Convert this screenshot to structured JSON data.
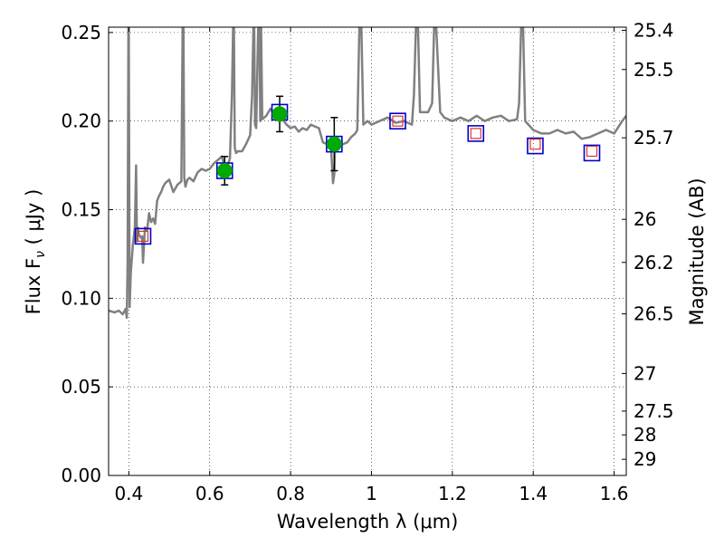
{
  "chart_data": {
    "type": "line",
    "xlabel": "Wavelength  λ (μm)",
    "ylabel": "Flux  F",
    "ylabel_subscript": "ν",
    "ylabel_unit": " ( μJy )",
    "y2label": "Magnitude (AB)",
    "xlim": [
      0.35,
      1.63
    ],
    "ylim": [
      0.0,
      0.253
    ],
    "grid": true,
    "xticks": [
      {
        "value": 0.4,
        "label": "0.4"
      },
      {
        "value": 0.6,
        "label": "0.6"
      },
      {
        "value": 0.8,
        "label": "0.8"
      },
      {
        "value": 1.0,
        "label": "1"
      },
      {
        "value": 1.2,
        "label": "1.2"
      },
      {
        "value": 1.4,
        "label": "1.4"
      },
      {
        "value": 1.6,
        "label": "1.6"
      }
    ],
    "yticks": [
      {
        "value": 0.0,
        "label": "0.00"
      },
      {
        "value": 0.05,
        "label": "0.05"
      },
      {
        "value": 0.1,
        "label": "0.10"
      },
      {
        "value": 0.15,
        "label": "0.15"
      },
      {
        "value": 0.2,
        "label": "0.20"
      },
      {
        "value": 0.25,
        "label": "0.25"
      }
    ],
    "y2ticks": [
      {
        "value": 25.4,
        "label": "25.4"
      },
      {
        "value": 25.5,
        "label": "25.5"
      },
      {
        "value": 25.7,
        "label": "25.7"
      },
      {
        "value": 26,
        "label": "26"
      },
      {
        "value": 26.2,
        "label": "26.2"
      },
      {
        "value": 26.5,
        "label": "26.5"
      },
      {
        "value": 27,
        "label": "27"
      },
      {
        "value": 27.5,
        "label": "27.5"
      },
      {
        "value": 28,
        "label": "28"
      },
      {
        "value": 29,
        "label": "29"
      }
    ],
    "spectrum": {
      "color": "#808080",
      "x": [
        0.35,
        0.365,
        0.375,
        0.385,
        0.392,
        0.395,
        0.397,
        0.399,
        0.4,
        0.402,
        0.405,
        0.41,
        0.415,
        0.418,
        0.42,
        0.422,
        0.425,
        0.43,
        0.433,
        0.435,
        0.44,
        0.445,
        0.45,
        0.455,
        0.46,
        0.465,
        0.47,
        0.475,
        0.48,
        0.485,
        0.49,
        0.5,
        0.51,
        0.52,
        0.53,
        0.533,
        0.535,
        0.537,
        0.54,
        0.545,
        0.55,
        0.56,
        0.57,
        0.58,
        0.59,
        0.6,
        0.61,
        0.62,
        0.63,
        0.64,
        0.65,
        0.655,
        0.658,
        0.66,
        0.662,
        0.665,
        0.67,
        0.68,
        0.69,
        0.7,
        0.705,
        0.708,
        0.71,
        0.712,
        0.715,
        0.72,
        0.723,
        0.725,
        0.727,
        0.73,
        0.74,
        0.75,
        0.76,
        0.77,
        0.78,
        0.79,
        0.8,
        0.81,
        0.82,
        0.83,
        0.84,
        0.85,
        0.86,
        0.87,
        0.88,
        0.89,
        0.9,
        0.905,
        0.908,
        0.91,
        0.915,
        0.92,
        0.93,
        0.94,
        0.95,
        0.96,
        0.965,
        0.97,
        0.975,
        0.98,
        0.99,
        1.0,
        1.02,
        1.04,
        1.06,
        1.08,
        1.1,
        1.105,
        1.11,
        1.115,
        1.12,
        1.14,
        1.15,
        1.155,
        1.16,
        1.17,
        1.18,
        1.2,
        1.22,
        1.24,
        1.26,
        1.28,
        1.3,
        1.32,
        1.34,
        1.36,
        1.365,
        1.37,
        1.375,
        1.38,
        1.4,
        1.42,
        1.44,
        1.46,
        1.48,
        1.5,
        1.52,
        1.54,
        1.56,
        1.58,
        1.6,
        1.62,
        1.63
      ],
      "y": [
        0.093,
        0.092,
        0.093,
        0.091,
        0.094,
        0.089,
        0.12,
        0.253,
        0.253,
        0.095,
        0.115,
        0.13,
        0.14,
        0.175,
        0.132,
        0.14,
        0.136,
        0.134,
        0.135,
        0.12,
        0.14,
        0.138,
        0.148,
        0.143,
        0.145,
        0.142,
        0.155,
        0.158,
        0.16,
        0.163,
        0.165,
        0.167,
        0.16,
        0.164,
        0.166,
        0.253,
        0.253,
        0.168,
        0.163,
        0.167,
        0.168,
        0.166,
        0.171,
        0.173,
        0.172,
        0.173,
        0.176,
        0.178,
        0.18,
        0.172,
        0.179,
        0.215,
        0.253,
        0.253,
        0.185,
        0.182,
        0.183,
        0.183,
        0.187,
        0.192,
        0.215,
        0.253,
        0.253,
        0.198,
        0.196,
        0.253,
        0.253,
        0.2,
        0.253,
        0.201,
        0.203,
        0.207,
        0.204,
        0.204,
        0.201,
        0.198,
        0.196,
        0.197,
        0.194,
        0.196,
        0.195,
        0.198,
        0.197,
        0.196,
        0.188,
        0.187,
        0.185,
        0.165,
        0.17,
        0.19,
        0.188,
        0.186,
        0.187,
        0.188,
        0.191,
        0.193,
        0.195,
        0.253,
        0.253,
        0.198,
        0.2,
        0.198,
        0.2,
        0.202,
        0.199,
        0.2,
        0.198,
        0.215,
        0.253,
        0.253,
        0.205,
        0.205,
        0.21,
        0.253,
        0.253,
        0.205,
        0.202,
        0.2,
        0.202,
        0.2,
        0.203,
        0.2,
        0.202,
        0.203,
        0.2,
        0.201,
        0.21,
        0.253,
        0.253,
        0.2,
        0.195,
        0.193,
        0.193,
        0.195,
        0.193,
        0.194,
        0.19,
        0.191,
        0.193,
        0.195,
        0.193,
        0.2,
        0.203
      ]
    },
    "boxes": {
      "edge_color": "#0000cc",
      "x": [
        0.435,
        0.637,
        0.773,
        0.908,
        1.065,
        1.258,
        1.405,
        1.545
      ],
      "y": [
        0.135,
        0.172,
        0.205,
        0.187,
        0.2,
        0.193,
        0.186,
        0.182
      ]
    },
    "model_points": {
      "edge_color": "#dd3333",
      "x": [
        0.435,
        1.065,
        1.258,
        1.405,
        1.545
      ],
      "y": [
        0.135,
        0.2,
        0.193,
        0.187,
        0.183
      ]
    },
    "observed_points": {
      "color": "#00aa00",
      "x": [
        0.637,
        0.773,
        0.908
      ],
      "y": [
        0.172,
        0.204,
        0.187
      ],
      "err": [
        0.008,
        0.01,
        0.015
      ]
    }
  }
}
